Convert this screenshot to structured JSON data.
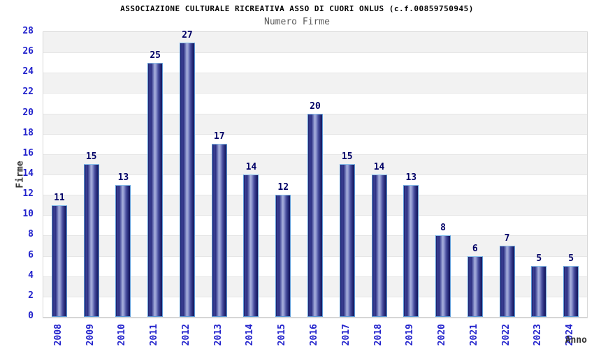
{
  "header": {
    "title": "ASSOCIAZIONE CULTURALE RICREATIVA ASSO DI CUORI ONLUS (c.f.00859750945)",
    "subtitle": "Numero Firme"
  },
  "chart_data": {
    "type": "bar",
    "title": "ASSOCIAZIONE CULTURALE RICREATIVA ASSO DI CUORI ONLUS (c.f.00859750945)",
    "subtitle": "Numero Firme",
    "xlabel": "Anno",
    "ylabel": "Firme",
    "categories": [
      "2008",
      "2009",
      "2010",
      "2011",
      "2012",
      "2013",
      "2014",
      "2015",
      "2016",
      "2017",
      "2018",
      "2019",
      "2020",
      "2021",
      "2022",
      "2023",
      "2024"
    ],
    "values": [
      11,
      15,
      13,
      25,
      27,
      17,
      14,
      12,
      20,
      15,
      14,
      13,
      8,
      6,
      7,
      5,
      5
    ],
    "ylim": [
      0,
      28
    ],
    "ytick_step": 2,
    "grid": true,
    "grid_bands": true,
    "bar_value_labels": true,
    "legend_position": "none"
  },
  "colors": {
    "background": "#ffffff",
    "title": "#000000",
    "subtitle": "#5a5a5a",
    "tick_label": "#2222cc",
    "value_label": "#000066",
    "axis_title": "#333333",
    "band": "#f2f2f2",
    "gridline": "#e6e6e6",
    "plot_border": "#d6d6d6",
    "bar_dark": "#1c1e6a",
    "bar_mid": "#3c4296",
    "bar_highlight": "#a9b1dc",
    "bar_border": "#5d9bd8",
    "bar_top_cap": "#8ac2ec"
  }
}
